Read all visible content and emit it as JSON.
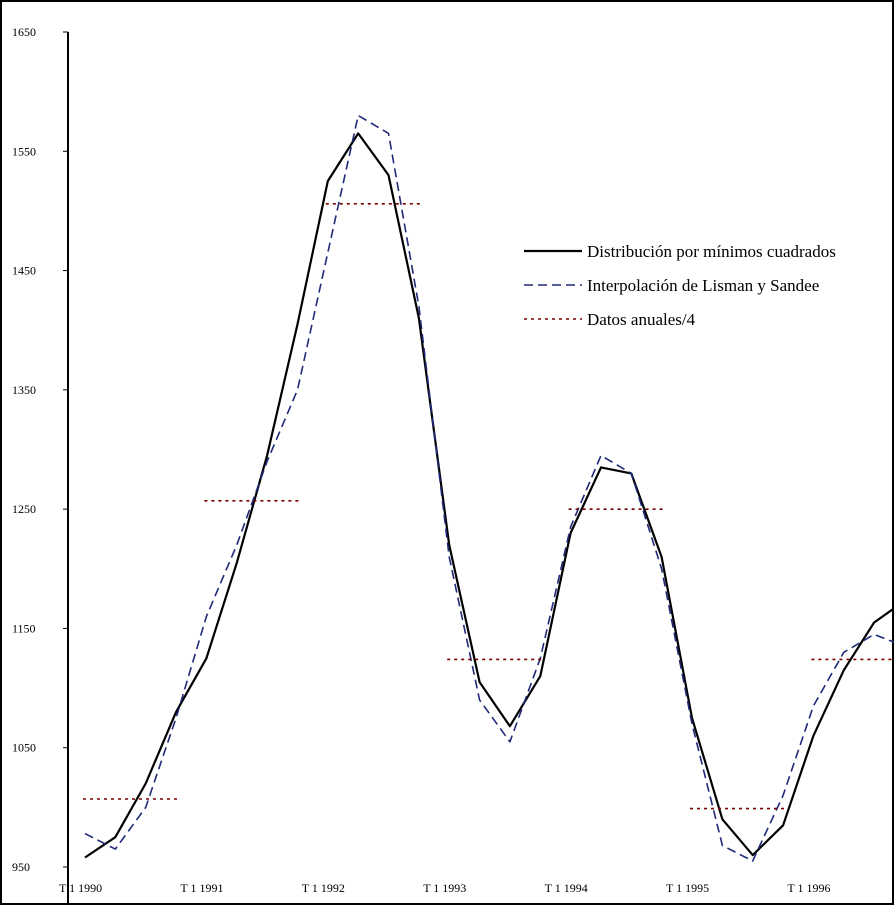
{
  "chart_data": {
    "type": "line",
    "title": "",
    "xlabel": "",
    "ylabel": "",
    "ylim": [
      950,
      1650
    ],
    "yticks": [
      950,
      1050,
      1150,
      1250,
      1350,
      1450,
      1550,
      1650
    ],
    "xticks": [
      "T 1   1990",
      "T 1   1991",
      "T 1   1992",
      "T 1   1993",
      "T 1   1994",
      "T 1   1995",
      "T 1   1996"
    ],
    "x": [
      "1990 T1",
      "1990 T2",
      "1990 T3",
      "1990 T4",
      "1991 T1",
      "1991 T2",
      "1991 T3",
      "1991 T4",
      "1992 T1",
      "1992 T2",
      "1992 T3",
      "1992 T4",
      "1993 T1",
      "1993 T2",
      "1993 T3",
      "1993 T4",
      "1994 T1",
      "1994 T2",
      "1994 T3",
      "1994 T4",
      "1995 T1",
      "1995 T2",
      "1995 T3",
      "1995 T4",
      "1996 T1",
      "1996 T2",
      "1996 T3",
      "1996 T4"
    ],
    "legend_position": "right",
    "series": [
      {
        "name": "Distribución por mínimos cuadrados",
        "style": "solid",
        "color": "#000000",
        "values": [
          958,
          975,
          1020,
          1080,
          1125,
          1205,
          1295,
          1405,
          1525,
          1565,
          1530,
          1410,
          1220,
          1105,
          1068,
          1110,
          1230,
          1285,
          1280,
          1210,
          1075,
          990,
          960,
          985,
          1060,
          1115,
          1155,
          1173
        ]
      },
      {
        "name": "Interpolación de Lisman y Sandee",
        "style": "dashed",
        "color": "#1f2a78",
        "values": [
          978,
          965,
          1000,
          1075,
          1160,
          1220,
          1290,
          1350,
          1465,
          1580,
          1565,
          1420,
          1210,
          1090,
          1055,
          1125,
          1235,
          1295,
          1280,
          1200,
          1070,
          968,
          955,
          1010,
          1085,
          1130,
          1145,
          1135
        ]
      },
      {
        "name": "Datos anuales/4",
        "style": "dotted",
        "color": "#7a0000",
        "values": [
          1007,
          1007,
          1007,
          1007,
          1257,
          1257,
          1257,
          1257,
          1506,
          1506,
          1506,
          1506,
          1124,
          1124,
          1124,
          1124,
          1250,
          1250,
          1250,
          1250,
          999,
          999,
          999,
          999,
          1124,
          1124,
          1124,
          1124
        ]
      }
    ]
  }
}
